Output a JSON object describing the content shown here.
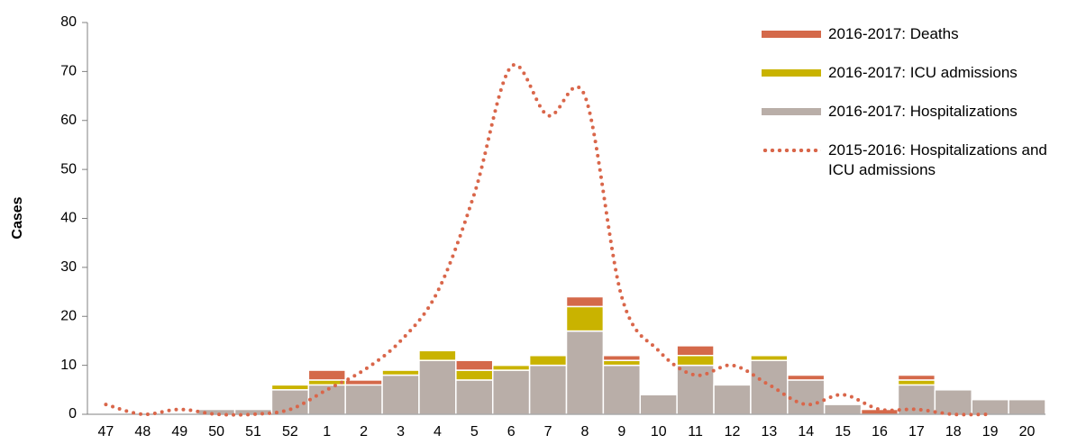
{
  "chart_data": {
    "type": "bar",
    "stacked": true,
    "ylabel": "Cases",
    "categories": [
      "47",
      "48",
      "49",
      "50",
      "51",
      "52",
      "1",
      "2",
      "3",
      "4",
      "5",
      "6",
      "7",
      "8",
      "9",
      "10",
      "11",
      "12",
      "13",
      "14",
      "15",
      "16",
      "17",
      "18",
      "19",
      "20"
    ],
    "series": [
      {
        "name": "2016-2017: Deaths",
        "type": "bar",
        "color": "#d4694a",
        "values": [
          0,
          0,
          0,
          0,
          0,
          0,
          2,
          1,
          0,
          0,
          2,
          0,
          0,
          2,
          1,
          0,
          2,
          0,
          0,
          1,
          0,
          1,
          1,
          0,
          0,
          0
        ]
      },
      {
        "name": "2016-2017: ICU admissions",
        "type": "bar",
        "color": "#c9b300",
        "values": [
          0,
          0,
          0,
          0,
          0,
          1,
          1,
          0,
          1,
          2,
          2,
          1,
          2,
          5,
          1,
          0,
          2,
          0,
          1,
          0,
          0,
          0,
          1,
          0,
          0,
          0
        ]
      },
      {
        "name": "2016-2017: Hospitalizations",
        "type": "bar",
        "color": "#b9aea8",
        "values": [
          0,
          0,
          0,
          1,
          1,
          5,
          6,
          6,
          8,
          11,
          7,
          9,
          10,
          17,
          10,
          4,
          10,
          6,
          11,
          7,
          2,
          0,
          6,
          5,
          3,
          3
        ]
      },
      {
        "name": "2015-2016: Hospitalizations and ICU admissions",
        "type": "line",
        "color": "#d9664a",
        "values": [
          2,
          0,
          1,
          0,
          0,
          1,
          5,
          9,
          15,
          25,
          45,
          71,
          61,
          65,
          24,
          13,
          8,
          10,
          6,
          2,
          4,
          1,
          1,
          0,
          0,
          null
        ]
      }
    ],
    "ylim": [
      0,
      80
    ],
    "yticks": [
      0,
      10,
      20,
      30,
      40,
      50,
      60,
      70,
      80
    ],
    "grid": false,
    "legend": "top-right"
  }
}
